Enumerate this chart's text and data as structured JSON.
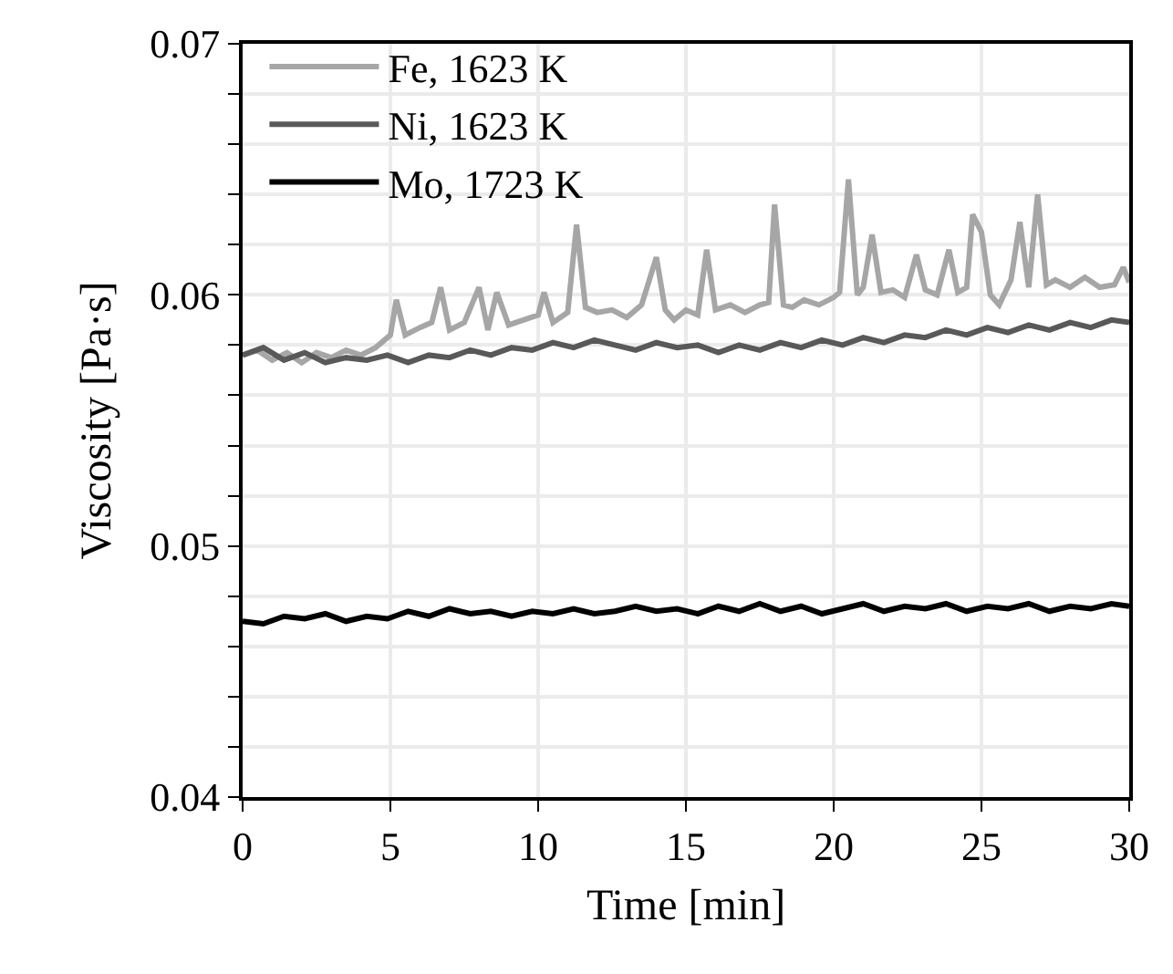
{
  "chart_data": {
    "type": "line",
    "xlabel": "Time [min]",
    "ylabel": "Viscosity [Pa·s]",
    "xlim": [
      0,
      30
    ],
    "xticks": [
      0,
      5,
      10,
      15,
      20,
      25,
      30
    ],
    "ylim": [
      0.04,
      0.07
    ],
    "yticks": [
      0.04,
      {
        "value": 0.042,
        "label": null
      },
      {
        "value": 0.044,
        "label": null
      },
      {
        "value": 0.046,
        "label": null
      },
      {
        "value": 0.048,
        "label": null
      },
      0.05,
      {
        "value": 0.052,
        "label": null
      },
      {
        "value": 0.054,
        "label": null
      },
      {
        "value": 0.056,
        "label": null
      },
      {
        "value": 0.058,
        "label": null
      },
      0.06,
      {
        "value": 0.062,
        "label": null
      },
      {
        "value": 0.064,
        "label": null
      },
      {
        "value": 0.066,
        "label": null
      },
      {
        "value": 0.068,
        "label": null
      },
      0.07
    ],
    "grid": true,
    "legend": "top left",
    "marker": "none",
    "line_style": "solid",
    "series": [
      {
        "name": "Fe, 1623 K",
        "color": "#a6a6a6",
        "x": [
          0,
          0.5,
          1,
          1.5,
          2,
          2.5,
          3,
          3.5,
          4,
          4.5,
          5,
          5.2,
          5.5,
          6,
          6.4,
          6.7,
          7,
          7.5,
          8,
          8.3,
          8.6,
          9,
          9.5,
          10,
          10.2,
          10.5,
          11,
          11.3,
          11.6,
          12,
          12.5,
          13,
          13.5,
          14,
          14.3,
          14.6,
          15,
          15.4,
          15.7,
          16,
          16.5,
          17,
          17.5,
          17.8,
          18,
          18.3,
          18.6,
          19,
          19.5,
          20,
          20.2,
          20.5,
          20.8,
          21,
          21.3,
          21.6,
          22,
          22.4,
          22.8,
          23.1,
          23.5,
          23.9,
          24.2,
          24.5,
          24.7,
          25,
          25.3,
          25.6,
          26,
          26.3,
          26.6,
          26.9,
          27.2,
          27.5,
          28,
          28.5,
          29,
          29.5,
          29.8,
          30
        ],
        "values": [
          0.0576,
          0.0578,
          0.0574,
          0.0577,
          0.0573,
          0.0577,
          0.0575,
          0.0578,
          0.0576,
          0.0579,
          0.0584,
          0.0598,
          0.0584,
          0.0587,
          0.0589,
          0.0603,
          0.0586,
          0.0589,
          0.0603,
          0.0586,
          0.0601,
          0.0588,
          0.059,
          0.0592,
          0.0601,
          0.0589,
          0.0593,
          0.0628,
          0.0595,
          0.0593,
          0.0594,
          0.0591,
          0.0596,
          0.0615,
          0.0594,
          0.059,
          0.0594,
          0.0592,
          0.0618,
          0.0594,
          0.0596,
          0.0593,
          0.0596,
          0.0597,
          0.0636,
          0.0596,
          0.0595,
          0.0598,
          0.0596,
          0.0599,
          0.0601,
          0.0646,
          0.06,
          0.0603,
          0.0624,
          0.0601,
          0.0602,
          0.0599,
          0.0616,
          0.0602,
          0.06,
          0.0618,
          0.0601,
          0.0603,
          0.0632,
          0.0625,
          0.06,
          0.0596,
          0.0606,
          0.0629,
          0.0603,
          0.064,
          0.0604,
          0.0606,
          0.0603,
          0.0607,
          0.0603,
          0.0604,
          0.0611,
          0.0605
        ]
      },
      {
        "name": "Ni, 1623 K",
        "color": "#595959",
        "x": [
          0,
          0.7,
          1.4,
          2.1,
          2.8,
          3.5,
          4.2,
          4.9,
          5.6,
          6.3,
          7,
          7.7,
          8.4,
          9.1,
          9.8,
          10.5,
          11.2,
          11.9,
          12.6,
          13.3,
          14,
          14.7,
          15.4,
          16.1,
          16.8,
          17.5,
          18.2,
          18.9,
          19.6,
          20.3,
          21,
          21.7,
          22.4,
          23.1,
          23.8,
          24.5,
          25.2,
          25.9,
          26.6,
          27.3,
          28,
          28.7,
          29.4,
          30
        ],
        "values": [
          0.0576,
          0.0579,
          0.0574,
          0.0577,
          0.0573,
          0.0575,
          0.0574,
          0.0576,
          0.0573,
          0.0576,
          0.0575,
          0.0578,
          0.0576,
          0.0579,
          0.0578,
          0.0581,
          0.0579,
          0.0582,
          0.058,
          0.0578,
          0.0581,
          0.0579,
          0.058,
          0.0577,
          0.058,
          0.0578,
          0.0581,
          0.0579,
          0.0582,
          0.058,
          0.0583,
          0.0581,
          0.0584,
          0.0583,
          0.0586,
          0.0584,
          0.0587,
          0.0585,
          0.0588,
          0.0586,
          0.0589,
          0.0587,
          0.059,
          0.0589
        ]
      },
      {
        "name": "Mo, 1723 K",
        "color": "#000000",
        "x": [
          0,
          0.7,
          1.4,
          2.1,
          2.8,
          3.5,
          4.2,
          4.9,
          5.6,
          6.3,
          7,
          7.7,
          8.4,
          9.1,
          9.8,
          10.5,
          11.2,
          11.9,
          12.6,
          13.3,
          14,
          14.7,
          15.4,
          16.1,
          16.8,
          17.5,
          18.2,
          18.9,
          19.6,
          20.3,
          21,
          21.7,
          22.4,
          23.1,
          23.8,
          24.5,
          25.2,
          25.9,
          26.6,
          27.3,
          28,
          28.7,
          29.4,
          30
        ],
        "values": [
          0.047,
          0.0469,
          0.0472,
          0.0471,
          0.0473,
          0.047,
          0.0472,
          0.0471,
          0.0474,
          0.0472,
          0.0475,
          0.0473,
          0.0474,
          0.0472,
          0.0474,
          0.0473,
          0.0475,
          0.0473,
          0.0474,
          0.0476,
          0.0474,
          0.0475,
          0.0473,
          0.0476,
          0.0474,
          0.0477,
          0.0474,
          0.0476,
          0.0473,
          0.0475,
          0.0477,
          0.0474,
          0.0476,
          0.0475,
          0.0477,
          0.0474,
          0.0476,
          0.0475,
          0.0477,
          0.0474,
          0.0476,
          0.0475,
          0.0477,
          0.0476
        ]
      }
    ]
  }
}
